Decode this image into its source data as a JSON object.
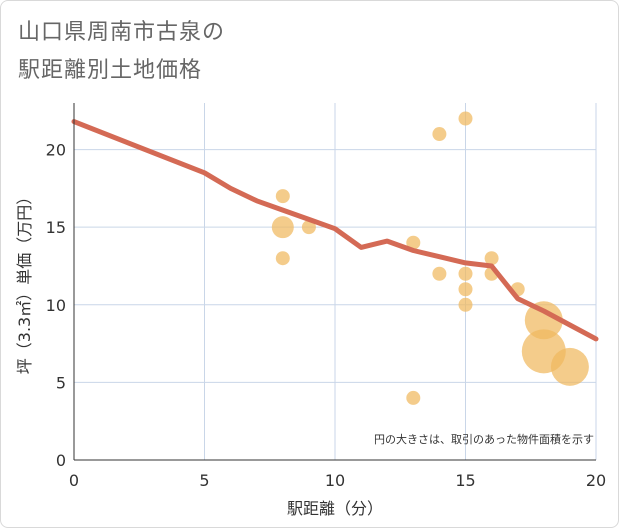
{
  "title_line1": "山口県周南市古泉の",
  "title_line2": "駅距離別土地価格",
  "chart_data": {
    "type": "scatter",
    "xlabel": "駅距離（分）",
    "ylabel": "坪（3.3㎡）単価（万円）",
    "xlim": [
      0,
      20
    ],
    "ylim": [
      0,
      23
    ],
    "xticks": [
      0,
      5,
      10,
      15,
      20
    ],
    "yticks": [
      0,
      5,
      10,
      15,
      20
    ],
    "grid": true,
    "note": "円の大きさは、取引のあった物件面積を示す",
    "point_color": "#f0b85e",
    "line_color": "#d46a55",
    "points": [
      {
        "x": 8,
        "y": 17,
        "size": 1
      },
      {
        "x": 8,
        "y": 15,
        "size": 2
      },
      {
        "x": 8,
        "y": 13,
        "size": 1
      },
      {
        "x": 9,
        "y": 15,
        "size": 1
      },
      {
        "x": 13,
        "y": 14,
        "size": 1
      },
      {
        "x": 13,
        "y": 4,
        "size": 1
      },
      {
        "x": 14,
        "y": 21,
        "size": 1
      },
      {
        "x": 14,
        "y": 12,
        "size": 1
      },
      {
        "x": 15,
        "y": 22,
        "size": 1
      },
      {
        "x": 15,
        "y": 12,
        "size": 1
      },
      {
        "x": 15,
        "y": 11,
        "size": 1
      },
      {
        "x": 15,
        "y": 10,
        "size": 1
      },
      {
        "x": 16,
        "y": 13,
        "size": 1
      },
      {
        "x": 16,
        "y": 12,
        "size": 1
      },
      {
        "x": 17,
        "y": 11,
        "size": 1
      },
      {
        "x": 18,
        "y": 9,
        "size": 4
      },
      {
        "x": 18,
        "y": 7,
        "size": 5
      },
      {
        "x": 19,
        "y": 6,
        "size": 4
      }
    ],
    "trend_line": {
      "x": [
        0,
        5,
        6,
        7,
        8,
        9,
        10,
        11,
        12,
        13,
        14,
        15,
        16,
        17,
        18,
        19,
        20
      ],
      "y": [
        21.8,
        18.5,
        17.5,
        16.7,
        16.1,
        15.5,
        14.9,
        13.7,
        14.1,
        13.5,
        13.1,
        12.7,
        12.5,
        10.4,
        9.6,
        8.7,
        7.8
      ]
    }
  }
}
